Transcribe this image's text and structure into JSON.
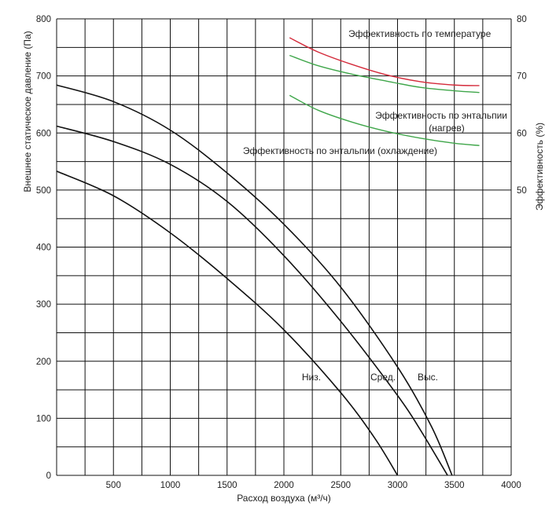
{
  "chart_data": {
    "type": "line",
    "xlabel": "Расход воздуха (м³/ч)",
    "ylabel_left": "Внешнее статическое давление (Па)",
    "ylabel_right": "Эффективность (%)",
    "xlim": [
      0,
      4000
    ],
    "ylim_left": [
      0,
      800
    ],
    "ylim_right": [
      0,
      80
    ],
    "x_ticks": [
      0,
      500,
      1000,
      1500,
      2000,
      2500,
      3000,
      3500,
      4000
    ],
    "x_tick_labels": [
      "",
      "500",
      "1000",
      "1500",
      "2000",
      "2500",
      "3000",
      "3500",
      "4000"
    ],
    "y_left_ticks": [
      0,
      100,
      200,
      300,
      400,
      500,
      600,
      700,
      800
    ],
    "y_right_ticks": [
      50,
      60,
      70,
      80
    ],
    "grid": true,
    "pressure_series": [
      {
        "name": "Низ.",
        "label": "Низ.",
        "color": "#111111",
        "x": [
          0,
          500,
          1000,
          1500,
          2000,
          2500,
          2800,
          3000
        ],
        "y": [
          533,
          490,
          425,
          345,
          255,
          145,
          65,
          0
        ]
      },
      {
        "name": "Сред.",
        "label": "Сред.",
        "color": "#111111",
        "x": [
          0,
          500,
          1000,
          1500,
          2000,
          2500,
          3000,
          3200,
          3440
        ],
        "y": [
          612,
          585,
          545,
          480,
          385,
          270,
          140,
          80,
          0
        ]
      },
      {
        "name": "Выс.",
        "label": "Выс.",
        "color": "#111111",
        "x": [
          0,
          500,
          1000,
          1500,
          2000,
          2500,
          3000,
          3300,
          3480
        ],
        "y": [
          684,
          655,
          605,
          530,
          440,
          330,
          190,
          85,
          0
        ]
      }
    ],
    "efficiency_series": [
      {
        "name": "Эффективность по температуре",
        "color": "#d42a3a",
        "x": [
          2050,
          2300,
          2600,
          2900,
          3200,
          3500,
          3720
        ],
        "y": [
          76.7,
          74.2,
          72.0,
          70.2,
          69.0,
          68.4,
          68.3
        ]
      },
      {
        "name": "Эффективность по энтальпии (нагрев)",
        "color": "#3fa64a",
        "x": [
          2050,
          2300,
          2600,
          2900,
          3200,
          3500,
          3720
        ],
        "y": [
          73.6,
          71.8,
          70.3,
          69.1,
          68.0,
          67.4,
          67.1
        ]
      },
      {
        "name": "Эффективность по энтальпии (охлаждение)",
        "color": "#3fa64a",
        "x": [
          2050,
          2300,
          2600,
          2900,
          3200,
          3500,
          3720
        ],
        "y": [
          66.6,
          64.0,
          61.9,
          60.3,
          59.1,
          58.2,
          57.8
        ]
      }
    ],
    "annotations": {
      "temperature": "Эффективность по температуре",
      "enthalpy_heating_1": "Эффективность по энтальпии",
      "enthalpy_heating_2": "(нагрев)",
      "enthalpy_cooling": "Эффективность по энтальпии (охлаждение)",
      "low": "Низ.",
      "mid": "Сред.",
      "high": "Выс."
    }
  }
}
